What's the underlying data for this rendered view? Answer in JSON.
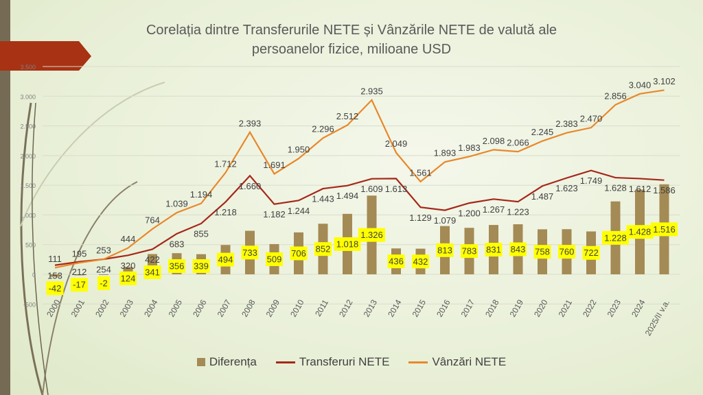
{
  "chart_data": {
    "type": "bar+line",
    "title": "Corelația dintre Transferurile NETE și Vânzările NETE de valută ale persoanelor fizice, milioane USD",
    "title_lines": [
      "Corelația dintre Transferurile NETE și Vânzările NETE de valută ale",
      "persoanelor fizice, milioane USD"
    ],
    "categories": [
      "2000",
      "2001",
      "2002",
      "2003",
      "2004",
      "2005",
      "2006",
      "2007",
      "2008",
      "2009",
      "2010",
      "2011",
      "2012",
      "2013",
      "2014",
      "2015",
      "2016",
      "2017",
      "2018",
      "2019",
      "2020",
      "2021",
      "2022",
      "2023",
      "2024",
      "2025/II v.a."
    ],
    "ylim": [
      -500,
      3500
    ],
    "yticks": [
      -500,
      0,
      500,
      1000,
      1500,
      2000,
      2500,
      3000,
      3500
    ],
    "ytick_labels": [
      "-500",
      "0",
      "500",
      "1.000",
      "1.500",
      "2.000",
      "2.500",
      "3.000",
      "3.500"
    ],
    "grid": true,
    "legend_position": "bottom",
    "series": [
      {
        "name": "Diferența",
        "kind": "bar",
        "color": "#a48a55",
        "values": [
          -42,
          -17,
          -2,
          124,
          341,
          356,
          339,
          494,
          733,
          509,
          706,
          852,
          1018,
          1326,
          436,
          432,
          813,
          783,
          831,
          843,
          758,
          760,
          722,
          1228,
          1428,
          1516
        ]
      },
      {
        "name": "Transferuri NETE",
        "kind": "line",
        "color": "#a5271a",
        "values": [
          153,
          212,
          254,
          320,
          422,
          683,
          855,
          1218,
          1660,
          1182,
          1244,
          1443,
          1494,
          1609,
          1613,
          1129,
          1079,
          1200,
          1267,
          1223,
          1487,
          1623,
          1749,
          1628,
          1612,
          1586
        ]
      },
      {
        "name": "Vânzări NETE",
        "kind": "line",
        "color": "#e8872a",
        "values": [
          111,
          195,
          253,
          444,
          764,
          1039,
          1194,
          1712,
          2393,
          1691,
          1950,
          2296,
          2512,
          2935,
          2049,
          1561,
          1893,
          1983,
          2098,
          2066,
          2245,
          2383,
          2470,
          2856,
          3040,
          3102
        ]
      }
    ],
    "label_highlight_color": "#ffff00"
  }
}
